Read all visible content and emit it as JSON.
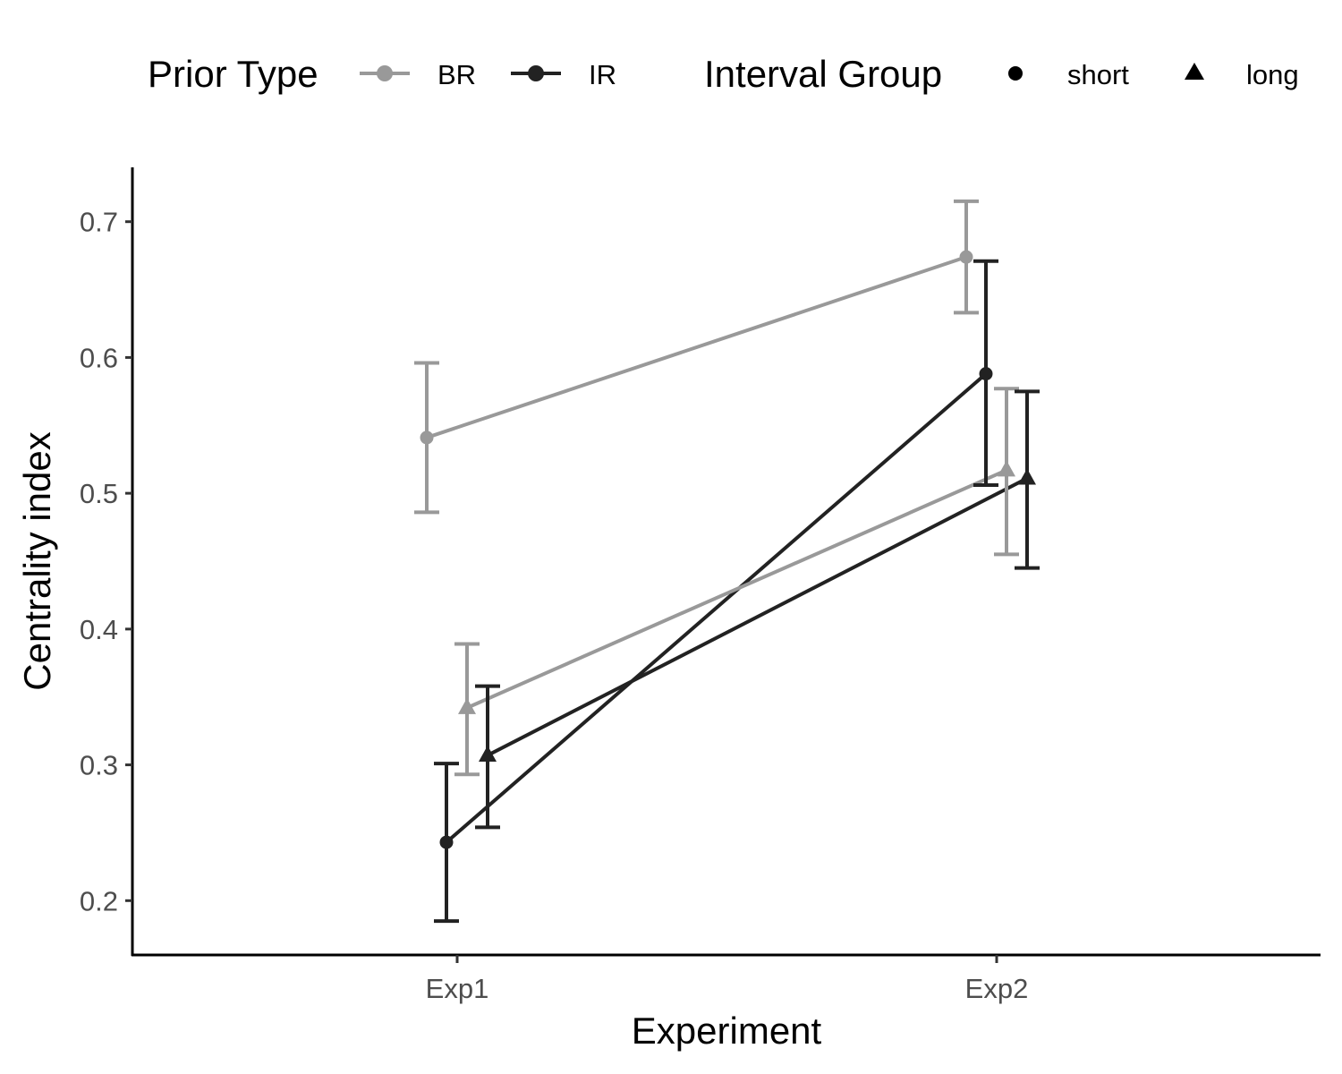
{
  "chart_data": {
    "type": "line",
    "xlabel": "Experiment",
    "ylabel": "Centrality index",
    "categories": [
      "Exp1",
      "Exp2"
    ],
    "ylim": [
      0.16,
      0.74
    ],
    "y_ticks": [
      "0.2",
      "0.3",
      "0.4",
      "0.5",
      "0.6",
      "0.7"
    ],
    "grid": false,
    "legend_position": "top",
    "legends": [
      {
        "title": "Prior Type",
        "entries": [
          {
            "label": "BR",
            "color": "#999999",
            "shape": "line-circle"
          },
          {
            "label": "IR",
            "color": "#222222",
            "shape": "line-circle"
          }
        ]
      },
      {
        "title": "Interval Group",
        "entries": [
          {
            "label": "short",
            "shape": "circle"
          },
          {
            "label": "long",
            "shape": "triangle"
          }
        ]
      }
    ],
    "series": [
      {
        "prior": "BR",
        "interval": "short",
        "color": "#999999",
        "shape": "circle",
        "values": [
          0.541,
          0.674
        ],
        "lower": [
          0.486,
          0.633
        ],
        "upper": [
          0.596,
          0.715
        ]
      },
      {
        "prior": "IR",
        "interval": "short",
        "color": "#222222",
        "shape": "circle",
        "values": [
          0.243,
          0.588
        ],
        "lower": [
          0.185,
          0.506
        ],
        "upper": [
          0.301,
          0.671
        ]
      },
      {
        "prior": "BR",
        "interval": "long",
        "color": "#999999",
        "shape": "triangle",
        "values": [
          0.342,
          0.517
        ],
        "lower": [
          0.293,
          0.455
        ],
        "upper": [
          0.389,
          0.577
        ]
      },
      {
        "prior": "IR",
        "interval": "long",
        "color": "#222222",
        "shape": "triangle",
        "values": [
          0.307,
          0.511
        ],
        "lower": [
          0.254,
          0.445
        ],
        "upper": [
          0.358,
          0.575
        ]
      }
    ]
  }
}
